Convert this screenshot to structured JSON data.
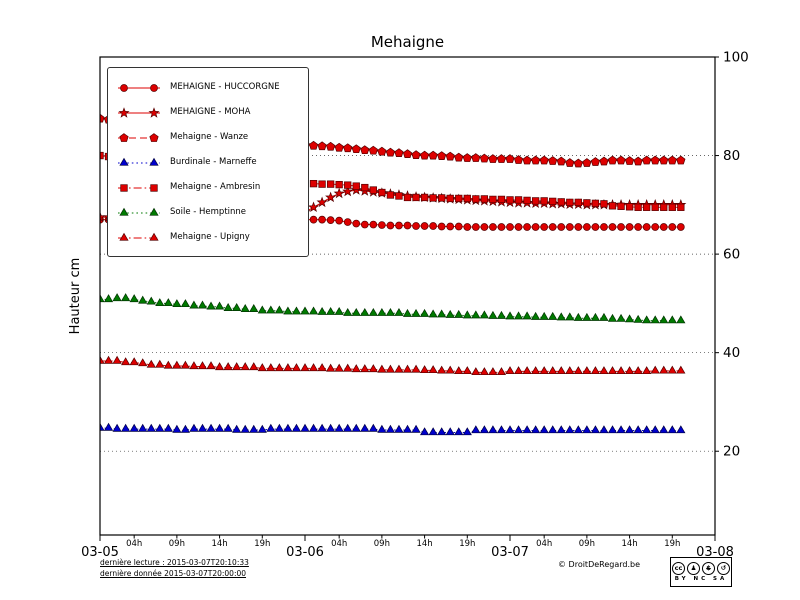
{
  "chart_data": {
    "type": "line",
    "title": "Mehaigne",
    "ylabel": "Hauteur cm",
    "xlabel": "",
    "xlim_hours": [
      0,
      72
    ],
    "ylim": [
      3,
      100
    ],
    "grid": "horizontal-dotted",
    "legend_position": "upper-left",
    "grid_values": [
      20,
      40,
      60,
      80
    ],
    "y_ticks": [
      {
        "v": 100,
        "label": "100"
      },
      {
        "v": 80,
        "label": "80"
      },
      {
        "v": 60,
        "label": "60"
      },
      {
        "v": 40,
        "label": "40"
      },
      {
        "v": 20,
        "label": "20"
      }
    ],
    "x_ticks": [
      {
        "t": 0,
        "label": "03-05",
        "major": true
      },
      {
        "t": 4,
        "label": "04h"
      },
      {
        "t": 9,
        "label": "09h"
      },
      {
        "t": 14,
        "label": "14h"
      },
      {
        "t": 19,
        "label": "19h"
      },
      {
        "t": 24,
        "label": "03-06",
        "major": true
      },
      {
        "t": 28,
        "label": "04h"
      },
      {
        "t": 33,
        "label": "09h"
      },
      {
        "t": 38,
        "label": "14h"
      },
      {
        "t": 43,
        "label": "19h"
      },
      {
        "t": 48,
        "label": "03-07",
        "major": true
      },
      {
        "t": 52,
        "label": "04h"
      },
      {
        "t": 57,
        "label": "09h"
      },
      {
        "t": 62,
        "label": "14h"
      },
      {
        "t": 67,
        "label": "19h"
      },
      {
        "t": 72,
        "label": "03-08",
        "major": true
      }
    ],
    "series": [
      {
        "id": "huccorgne",
        "name": "MEHAIGNE - HUCCORGNE",
        "color": "#dd0000",
        "edge": "#550000",
        "marker": "circle",
        "line": "solid",
        "t0": 0,
        "dt": 1,
        "values": [
          67,
          67,
          67,
          66.8,
          66.8,
          66.8,
          66.6,
          66.6,
          66.5,
          66.5,
          66.5,
          66.5,
          66.5,
          66.4,
          66.4,
          66.3,
          66.3,
          66.3,
          66.3,
          66.4,
          66.5,
          66.5,
          66.6,
          66.8,
          67,
          67,
          67,
          66.9,
          66.8,
          66.5,
          66.2,
          66,
          66,
          65.9,
          65.8,
          65.8,
          65.8,
          65.7,
          65.7,
          65.7,
          65.6,
          65.6,
          65.6,
          65.5,
          65.5,
          65.5,
          65.5,
          65.5,
          65.5,
          65.5,
          65.5,
          65.5,
          65.5,
          65.5,
          65.5,
          65.5,
          65.5,
          65.5,
          65.5,
          65.5,
          65.5,
          65.5,
          65.5,
          65.5,
          65.5,
          65.5,
          65.5,
          65.5,
          65.5
        ]
      },
      {
        "id": "moha",
        "name": "MEHAIGNE - MOHA",
        "color": "#dd0000",
        "edge": "#550000",
        "marker": "star",
        "line": "solid",
        "t0": 0,
        "dt": 1,
        "values": [
          67.5,
          67.5,
          67.5,
          67.5,
          67.5,
          67.5,
          67.5,
          67.5,
          67.5,
          67.5,
          67.5,
          67.5,
          67.5,
          67.5,
          67.5,
          67.5,
          67.5,
          67.5,
          67.5,
          67.6,
          67.8,
          68,
          68.2,
          68.3,
          68.5,
          69.5,
          70.5,
          71.5,
          72.3,
          72.7,
          73,
          72.8,
          72.6,
          72.4,
          72.2,
          72,
          71.8,
          71.6,
          71.5,
          71.4,
          71.3,
          71.2,
          71.1,
          71,
          70.9,
          70.8,
          70.7,
          70.6,
          70.5,
          70.4,
          70.4,
          70.3,
          70.3,
          70.2,
          70.2,
          70.1,
          70.1,
          70,
          70,
          70,
          70,
          70,
          70,
          70,
          70,
          70,
          70,
          70,
          70
        ]
      },
      {
        "id": "wanze",
        "name": "Mehaigne - Wanze",
        "color": "#dd0000",
        "edge": "#550000",
        "marker": "pentagon",
        "line": "dashed",
        "t0": 0,
        "dt": 1,
        "values": [
          87.5,
          87.3,
          87,
          86.8,
          86.5,
          86.3,
          86,
          85.8,
          85.5,
          85.3,
          85,
          84.8,
          84.5,
          84.3,
          84,
          83.8,
          83.5,
          83.3,
          83,
          82.8,
          82.6,
          82.5,
          82.4,
          82.3,
          82.2,
          82,
          81.9,
          81.8,
          81.6,
          81.5,
          81.3,
          81.1,
          81,
          80.8,
          80.6,
          80.5,
          80.3,
          80.1,
          80,
          80,
          79.9,
          79.8,
          79.6,
          79.5,
          79.5,
          79.4,
          79.3,
          79.3,
          79.3,
          79.1,
          79,
          79,
          79,
          78.9,
          78.8,
          78.5,
          78.4,
          78.5,
          78.7,
          78.8,
          79,
          79,
          78.9,
          78.8,
          79,
          79,
          79,
          79,
          79
        ]
      },
      {
        "id": "marneffe",
        "name": "Burdinale - Marneffe",
        "color": "#0000cc",
        "edge": "#000044",
        "marker": "triangle",
        "line": "dotted",
        "t0": 0,
        "dt": 1,
        "values": [
          24.7,
          24.7,
          24.5,
          24.5,
          24.5,
          24.5,
          24.5,
          24.5,
          24.5,
          24.3,
          24.3,
          24.5,
          24.5,
          24.5,
          24.5,
          24.5,
          24.3,
          24.3,
          24.3,
          24.3,
          24.5,
          24.5,
          24.5,
          24.5,
          24.5,
          24.5,
          24.5,
          24.5,
          24.5,
          24.5,
          24.5,
          24.5,
          24.5,
          24.3,
          24.3,
          24.3,
          24.3,
          24.3,
          23.8,
          23.8,
          23.8,
          23.8,
          23.8,
          23.8,
          24.2,
          24.2,
          24.2,
          24.2,
          24.2,
          24.2,
          24.2,
          24.2,
          24.2,
          24.2,
          24.2,
          24.2,
          24.2,
          24.2,
          24.2,
          24.2,
          24.2,
          24.2,
          24.2,
          24.2,
          24.2,
          24.2,
          24.2,
          24.2,
          24.2
        ]
      },
      {
        "id": "ambresin",
        "name": "Mehaigne - Ambresin",
        "color": "#dd0000",
        "edge": "#550000",
        "marker": "square",
        "line": "dashdot",
        "t0": 0,
        "dt": 1,
        "values": [
          80,
          79.8,
          79.5,
          79.3,
          79,
          78.8,
          78.5,
          78.3,
          78,
          77.8,
          77.5,
          77.3,
          77,
          76.8,
          76.5,
          76.3,
          76,
          75.8,
          75.5,
          75.3,
          75,
          74.8,
          74.6,
          74.4,
          74.3,
          74.3,
          74.2,
          74.2,
          74.1,
          74,
          73.8,
          73.5,
          73,
          72.5,
          72,
          71.8,
          71.5,
          71.5,
          71.5,
          71.4,
          71.4,
          71.3,
          71.3,
          71.3,
          71.2,
          71.2,
          71.1,
          71.1,
          71,
          71,
          70.9,
          70.8,
          70.8,
          70.7,
          70.6,
          70.5,
          70.5,
          70.4,
          70.3,
          70.2,
          69.8,
          69.7,
          69.6,
          69.5,
          69.5,
          69.5,
          69.5,
          69.5,
          69.5
        ]
      },
      {
        "id": "hemptinne",
        "name": "Soile - Hemptinne",
        "color": "#007a00",
        "edge": "#003300",
        "marker": "triangle",
        "line": "dotted",
        "t0": 0,
        "dt": 1,
        "values": [
          50.8,
          50.8,
          51,
          51,
          50.8,
          50.5,
          50.3,
          50,
          50,
          49.8,
          49.8,
          49.5,
          49.5,
          49.3,
          49.3,
          49,
          49,
          48.8,
          48.8,
          48.5,
          48.5,
          48.5,
          48.3,
          48.3,
          48.3,
          48.3,
          48.2,
          48.2,
          48.2,
          48,
          48,
          48,
          48,
          48,
          48,
          48,
          47.8,
          47.8,
          47.8,
          47.7,
          47.7,
          47.6,
          47.6,
          47.5,
          47.5,
          47.5,
          47.4,
          47.4,
          47.3,
          47.3,
          47.3,
          47.2,
          47.2,
          47.2,
          47.1,
          47.1,
          47,
          47,
          47,
          47,
          46.8,
          46.8,
          46.7,
          46.6,
          46.5,
          46.5,
          46.5,
          46.5,
          46.5
        ]
      },
      {
        "id": "upigny",
        "name": "Mehaigne - Upigny",
        "color": "#dd0000",
        "edge": "#550000",
        "marker": "triangle",
        "line": "dashdot",
        "t0": 0,
        "dt": 1,
        "values": [
          38.3,
          38.3,
          38.3,
          38,
          38,
          37.8,
          37.5,
          37.5,
          37.3,
          37.3,
          37.3,
          37.2,
          37.2,
          37.2,
          37,
          37,
          37,
          37,
          37,
          36.8,
          36.8,
          36.8,
          36.8,
          36.8,
          36.8,
          36.8,
          36.8,
          36.7,
          36.7,
          36.7,
          36.6,
          36.6,
          36.6,
          36.5,
          36.5,
          36.5,
          36.5,
          36.5,
          36.4,
          36.4,
          36.3,
          36.3,
          36.2,
          36.2,
          36,
          36,
          36,
          36,
          36.2,
          36.2,
          36.2,
          36.2,
          36.2,
          36.2,
          36.2,
          36.2,
          36.2,
          36.2,
          36.2,
          36.2,
          36.2,
          36.2,
          36.2,
          36.2,
          36.2,
          36.3,
          36.3,
          36.3,
          36.3
        ]
      }
    ]
  },
  "footer": {
    "last_reading": "dernière lecture : 2015-03-07T20:10:33",
    "last_data": "dernière donnée  2015-03-07T20:00:00",
    "copyright": "© DroitDeRegard.be",
    "license": {
      "cc_glyph": "cc",
      "by_glyph": "♟",
      "nc_glyph": "$",
      "sa_glyph": "↺",
      "labels": "BY NC SA"
    }
  }
}
